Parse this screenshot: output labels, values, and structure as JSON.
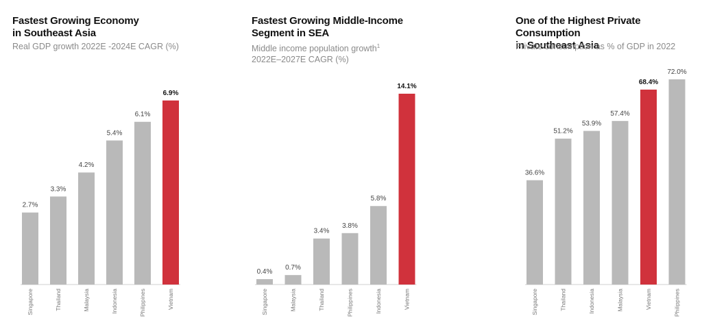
{
  "colors": {
    "bar": "#b9b9b9",
    "highlight": "#d0323c",
    "baseline": "#cfcfcf"
  },
  "chart_data": [
    {
      "type": "bar",
      "title": "Fastest Growing Economy\nin Southeast Asia",
      "subtitle": "Real GDP growth 2022E -2024E CAGR (%)",
      "categories": [
        "Singapore",
        "Thailand",
        "Malaysia",
        "Indonesia",
        "Philippines",
        "Vietnam"
      ],
      "values": [
        2.7,
        3.3,
        4.2,
        5.4,
        6.1,
        6.9
      ],
      "labels": [
        "2.7%",
        "3.3%",
        "4.2%",
        "5.4%",
        "6.1%",
        "6.9%"
      ],
      "highlight": "Vietnam",
      "ylim": [
        0,
        7.0
      ]
    },
    {
      "type": "bar",
      "title": "Fastest Growing Middle-Income\nSegment in SEA",
      "subtitle": "Middle income population growth\n2022E–2027E CAGR (%)",
      "subtitle_sup": "1",
      "categories": [
        "Singapore",
        "Malaysia",
        "Thailand",
        "Philippines",
        "Indonesia",
        "Vietnam"
      ],
      "values": [
        0.4,
        0.7,
        3.4,
        3.8,
        5.8,
        14.1
      ],
      "labels": [
        "0.4%",
        "0.7%",
        "3.4%",
        "3.8%",
        "5.8%",
        "14.1%"
      ],
      "highlight": "Vietnam",
      "ylim": [
        0,
        14.1
      ]
    },
    {
      "type": "bar",
      "title": "One of the Highest Private Consumption\nin Southeast Asia",
      "subtitle": "Private consumption as % of GDP in 2022",
      "categories": [
        "Singapore",
        "Thailand",
        "Indonesia",
        "Malaysia",
        "Vietnam",
        "Philippines"
      ],
      "values": [
        36.6,
        51.2,
        53.9,
        57.4,
        68.4,
        72.0
      ],
      "labels": [
        "36.6%",
        "51.2%",
        "53.9%",
        "57.4%",
        "68.4%",
        "72.0%"
      ],
      "highlight": "Vietnam",
      "ylim": [
        0,
        72.0
      ]
    }
  ]
}
